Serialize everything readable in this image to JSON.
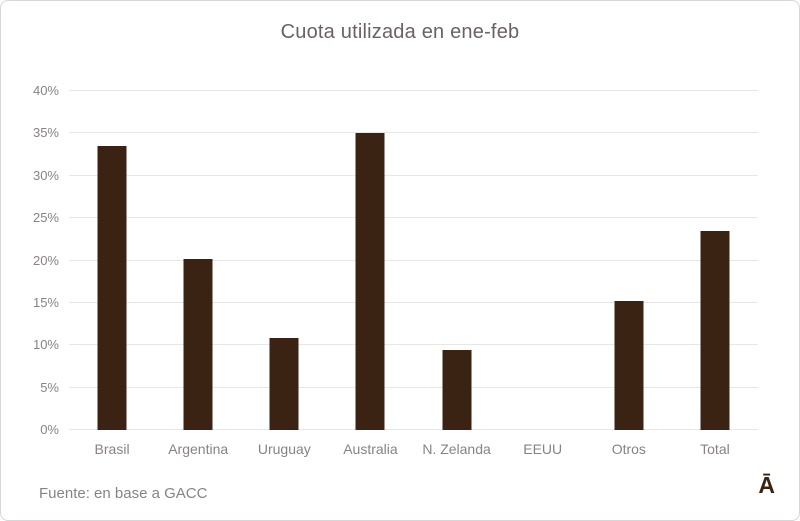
{
  "chart_data": {
    "type": "bar",
    "title": "Cuota utilizada en ene-feb",
    "categories": [
      "Brasil",
      "Argentina",
      "Uruguay",
      "Australia",
      "N. Zelanda",
      "EEUU",
      "Otros",
      "Total"
    ],
    "values": [
      33.5,
      20.2,
      10.8,
      35.0,
      9.4,
      0,
      15.2,
      23.5
    ],
    "xlabel": "",
    "ylabel": "",
    "ylim": [
      0,
      40
    ],
    "ytick_values": [
      0,
      5,
      10,
      15,
      20,
      25,
      30,
      35,
      40
    ],
    "ytick_labels": [
      "0%",
      "5%",
      "10%",
      "15%",
      "20%",
      "25%",
      "30%",
      "35%",
      "40%"
    ],
    "grid": true,
    "legend": false,
    "bar_color": "#3b2314"
  },
  "footer": {
    "source": "Fuente: en base a GACC",
    "logo": "Ā"
  },
  "colors": {
    "bar": "#3b2314",
    "title": "#6b6066",
    "axis_label": "#8a8184",
    "gridline": "#e8e6e6",
    "border": "#d8d6d7",
    "background": "#ffffff"
  }
}
